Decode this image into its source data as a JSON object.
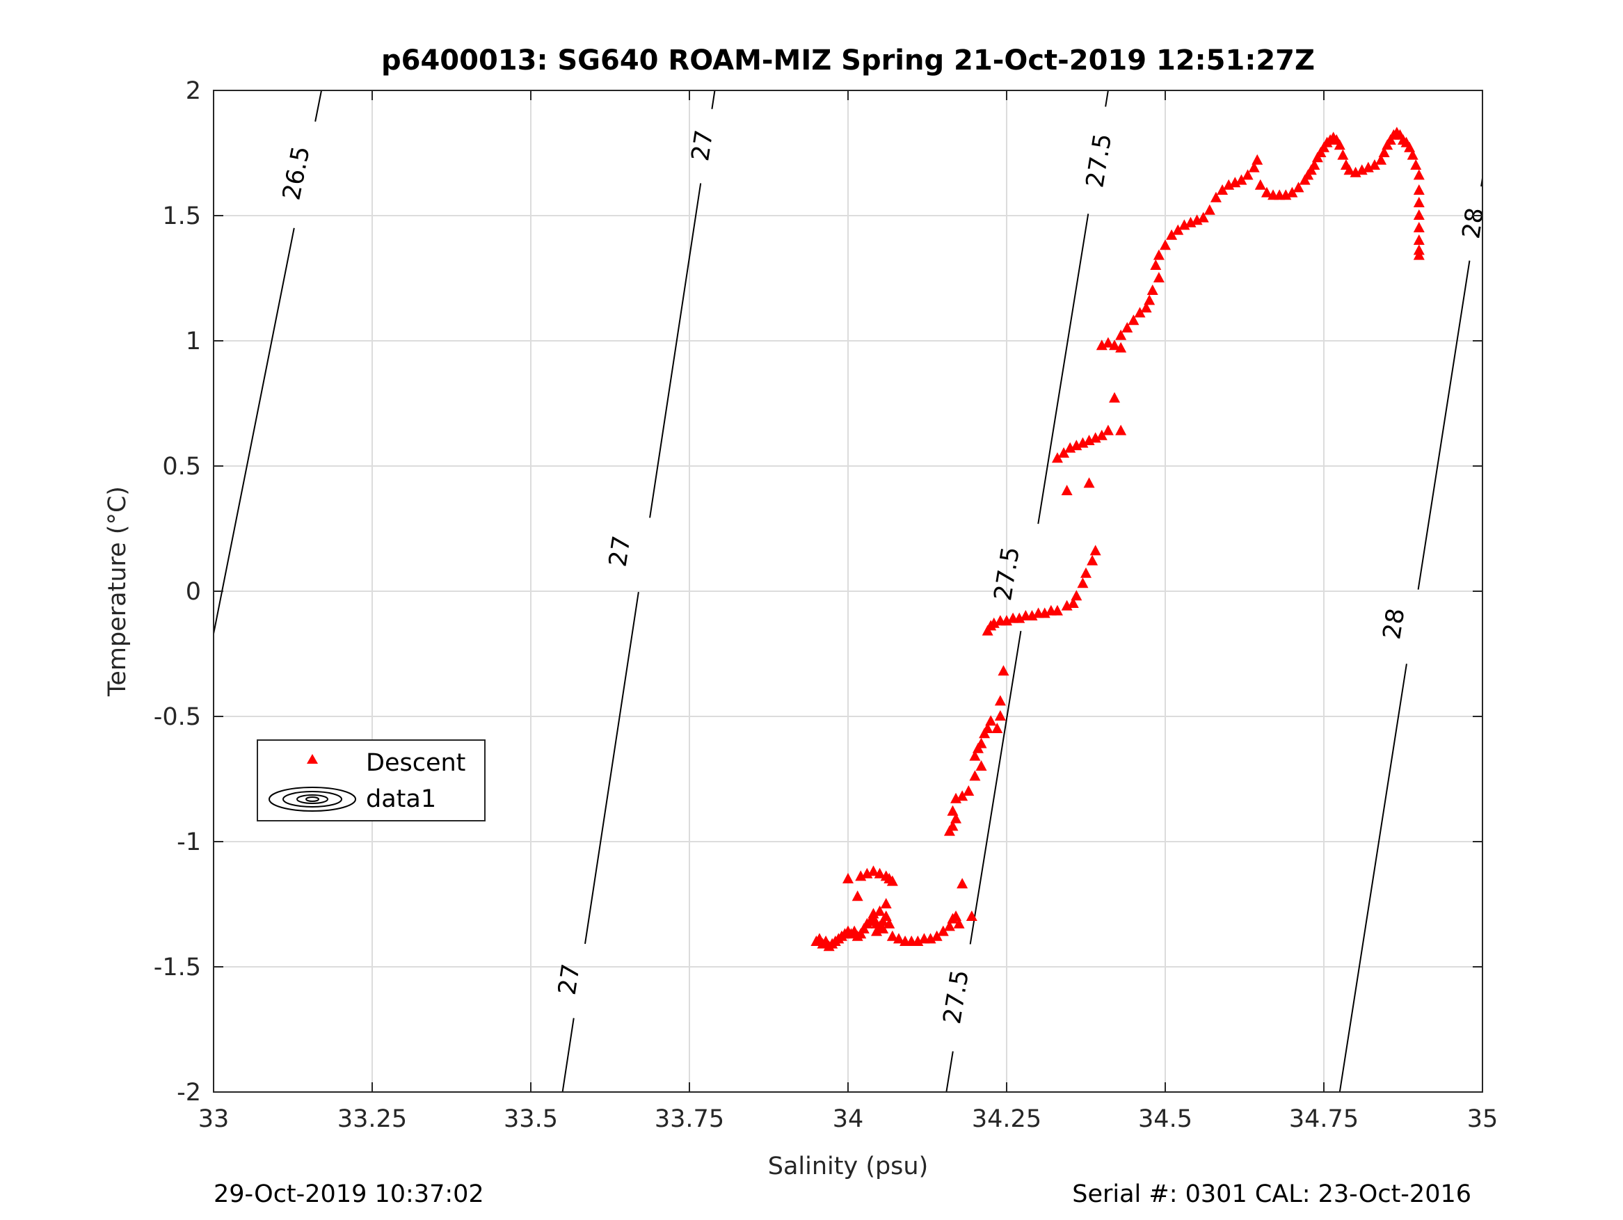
{
  "figure": {
    "title": "p6400013: SG640 ROAM-MIZ Spring 21-Oct-2019 12:51:27Z",
    "footer_left": "29-Oct-2019 10:37:02",
    "footer_right": "Serial #: 0301  CAL: 23-Oct-2016"
  },
  "chart_data": {
    "type": "scatter",
    "title": "p6400013: SG640 ROAM-MIZ Spring 21-Oct-2019 12:51:27Z",
    "xlabel": "Salinity (psu)",
    "ylabel": "Temperature (°C)",
    "xlim": [
      33,
      35
    ],
    "ylim": [
      -2,
      2
    ],
    "xticks": [
      33,
      33.25,
      33.5,
      33.75,
      34,
      34.25,
      34.5,
      34.75,
      35
    ],
    "xtick_labels": [
      "33",
      "33.25",
      "33.5",
      "33.75",
      "34",
      "34.25",
      "34.5",
      "34.75",
      "35"
    ],
    "yticks": [
      -2,
      -1.5,
      -1,
      -0.5,
      0,
      0.5,
      1,
      1.5,
      2
    ],
    "ytick_labels": [
      "-2",
      "-1.5",
      "-1",
      "-0.5",
      "0",
      "0.5",
      "1",
      "1.5",
      "2"
    ],
    "grid": true,
    "legend": {
      "position": "middle-left",
      "entries": [
        "Descent",
        "data1"
      ]
    },
    "colors": {
      "descent": "#ff0000",
      "contour": "#000000",
      "grid": "#dcdcdc"
    },
    "density_contours": [
      {
        "level": "26.5",
        "points": [
          [
            33.0,
            -0.17
          ],
          [
            33.17,
            2.0
          ]
        ],
        "labels": [
          [
            33.13,
            1.67
          ]
        ]
      },
      {
        "level": "27",
        "points": [
          [
            33.55,
            -2.0
          ],
          [
            33.79,
            2.0
          ]
        ],
        "labels": [
          [
            33.56,
            -1.55
          ],
          [
            33.64,
            0.16
          ],
          [
            33.77,
            1.78
          ]
        ]
      },
      {
        "level": "27.5",
        "points": [
          [
            34.155,
            -2.0
          ],
          [
            34.41,
            2.0
          ]
        ],
        "labels": [
          [
            34.17,
            -1.62
          ],
          [
            34.25,
            0.07
          ],
          [
            34.395,
            1.72
          ]
        ]
      },
      {
        "level": "28",
        "points": [
          [
            34.775,
            -2.0
          ],
          [
            35.0,
            1.65
          ]
        ],
        "labels": [
          [
            34.86,
            -0.13
          ],
          [
            34.985,
            1.47
          ]
        ]
      }
    ],
    "series": [
      {
        "name": "Descent",
        "marker": "triangle",
        "color": "#ff0000",
        "points": [
          [
            33.95,
            -1.4
          ],
          [
            33.955,
            -1.39
          ],
          [
            33.96,
            -1.41
          ],
          [
            33.965,
            -1.4
          ],
          [
            33.97,
            -1.42
          ],
          [
            33.975,
            -1.41
          ],
          [
            33.98,
            -1.4
          ],
          [
            33.985,
            -1.39
          ],
          [
            33.99,
            -1.38
          ],
          [
            33.995,
            -1.37
          ],
          [
            34.0,
            -1.36
          ],
          [
            34.005,
            -1.37
          ],
          [
            34.01,
            -1.36
          ],
          [
            34.015,
            -1.38
          ],
          [
            34.02,
            -1.37
          ],
          [
            34.025,
            -1.35
          ],
          [
            34.03,
            -1.33
          ],
          [
            34.035,
            -1.32
          ],
          [
            34.04,
            -1.31
          ],
          [
            34.045,
            -1.33
          ],
          [
            34.05,
            -1.34
          ],
          [
            34.055,
            -1.32
          ],
          [
            34.06,
            -1.3
          ],
          [
            34.065,
            -1.33
          ],
          [
            34.055,
            -1.35
          ],
          [
            34.045,
            -1.36
          ],
          [
            34.04,
            -1.29
          ],
          [
            34.05,
            -1.28
          ],
          [
            34.06,
            -1.25
          ],
          [
            34.015,
            -1.22
          ],
          [
            34.0,
            -1.15
          ],
          [
            34.02,
            -1.14
          ],
          [
            34.03,
            -1.13
          ],
          [
            34.04,
            -1.12
          ],
          [
            34.05,
            -1.13
          ],
          [
            34.06,
            -1.14
          ],
          [
            34.065,
            -1.15
          ],
          [
            34.07,
            -1.16
          ],
          [
            34.07,
            -1.38
          ],
          [
            34.08,
            -1.39
          ],
          [
            34.09,
            -1.4
          ],
          [
            34.1,
            -1.4
          ],
          [
            34.11,
            -1.4
          ],
          [
            34.12,
            -1.39
          ],
          [
            34.13,
            -1.39
          ],
          [
            34.14,
            -1.38
          ],
          [
            34.15,
            -1.36
          ],
          [
            34.16,
            -1.34
          ],
          [
            34.165,
            -1.31
          ],
          [
            34.17,
            -1.3
          ],
          [
            34.175,
            -1.33
          ],
          [
            34.18,
            -1.17
          ],
          [
            34.195,
            -1.3
          ],
          [
            34.16,
            -0.96
          ],
          [
            34.165,
            -0.94
          ],
          [
            34.17,
            -0.91
          ],
          [
            34.165,
            -0.88
          ],
          [
            34.17,
            -0.83
          ],
          [
            34.18,
            -0.82
          ],
          [
            34.19,
            -0.8
          ],
          [
            34.2,
            -0.74
          ],
          [
            34.21,
            -0.7
          ],
          [
            34.2,
            -0.66
          ],
          [
            34.205,
            -0.63
          ],
          [
            34.21,
            -0.61
          ],
          [
            34.215,
            -0.57
          ],
          [
            34.22,
            -0.55
          ],
          [
            34.225,
            -0.52
          ],
          [
            34.235,
            -0.55
          ],
          [
            34.24,
            -0.5
          ],
          [
            34.24,
            -0.44
          ],
          [
            34.245,
            -0.32
          ],
          [
            34.22,
            -0.16
          ],
          [
            34.225,
            -0.14
          ],
          [
            34.23,
            -0.13
          ],
          [
            34.24,
            -0.12
          ],
          [
            34.25,
            -0.12
          ],
          [
            34.26,
            -0.11
          ],
          [
            34.27,
            -0.11
          ],
          [
            34.28,
            -0.1
          ],
          [
            34.29,
            -0.1
          ],
          [
            34.3,
            -0.09
          ],
          [
            34.31,
            -0.09
          ],
          [
            34.32,
            -0.08
          ],
          [
            34.33,
            -0.08
          ],
          [
            34.345,
            -0.06
          ],
          [
            34.355,
            -0.05
          ],
          [
            34.36,
            -0.02
          ],
          [
            34.37,
            0.03
          ],
          [
            34.375,
            0.07
          ],
          [
            34.385,
            0.12
          ],
          [
            34.39,
            0.16
          ],
          [
            34.345,
            0.4
          ],
          [
            34.33,
            0.53
          ],
          [
            34.34,
            0.55
          ],
          [
            34.35,
            0.57
          ],
          [
            34.36,
            0.58
          ],
          [
            34.37,
            0.59
          ],
          [
            34.38,
            0.6
          ],
          [
            34.39,
            0.61
          ],
          [
            34.4,
            0.62
          ],
          [
            34.41,
            0.64
          ],
          [
            34.43,
            0.64
          ],
          [
            34.42,
            0.77
          ],
          [
            34.38,
            0.43
          ],
          [
            34.4,
            0.98
          ],
          [
            34.41,
            0.99
          ],
          [
            34.42,
            0.98
          ],
          [
            34.43,
            0.97
          ],
          [
            34.43,
            1.02
          ],
          [
            34.44,
            1.05
          ],
          [
            34.45,
            1.08
          ],
          [
            34.46,
            1.11
          ],
          [
            34.47,
            1.13
          ],
          [
            34.475,
            1.16
          ],
          [
            34.48,
            1.2
          ],
          [
            34.49,
            1.25
          ],
          [
            34.485,
            1.3
          ],
          [
            34.49,
            1.34
          ],
          [
            34.5,
            1.38
          ],
          [
            34.51,
            1.42
          ],
          [
            34.52,
            1.44
          ],
          [
            34.53,
            1.46
          ],
          [
            34.54,
            1.47
          ],
          [
            34.55,
            1.48
          ],
          [
            34.56,
            1.49
          ],
          [
            34.57,
            1.52
          ],
          [
            34.58,
            1.57
          ],
          [
            34.59,
            1.6
          ],
          [
            34.6,
            1.62
          ],
          [
            34.61,
            1.63
          ],
          [
            34.62,
            1.64
          ],
          [
            34.63,
            1.66
          ],
          [
            34.64,
            1.69
          ],
          [
            34.645,
            1.72
          ],
          [
            34.65,
            1.62
          ],
          [
            34.66,
            1.59
          ],
          [
            34.67,
            1.58
          ],
          [
            34.68,
            1.58
          ],
          [
            34.69,
            1.58
          ],
          [
            34.7,
            1.59
          ],
          [
            34.71,
            1.61
          ],
          [
            34.72,
            1.64
          ],
          [
            34.725,
            1.66
          ],
          [
            34.73,
            1.68
          ],
          [
            34.735,
            1.7
          ],
          [
            34.74,
            1.73
          ],
          [
            34.745,
            1.75
          ],
          [
            34.75,
            1.77
          ],
          [
            34.755,
            1.79
          ],
          [
            34.76,
            1.8
          ],
          [
            34.765,
            1.81
          ],
          [
            34.77,
            1.8
          ],
          [
            34.775,
            1.78
          ],
          [
            34.78,
            1.74
          ],
          [
            34.785,
            1.7
          ],
          [
            34.79,
            1.68
          ],
          [
            34.8,
            1.67
          ],
          [
            34.81,
            1.68
          ],
          [
            34.82,
            1.69
          ],
          [
            34.83,
            1.7
          ],
          [
            34.84,
            1.72
          ],
          [
            34.845,
            1.75
          ],
          [
            34.85,
            1.78
          ],
          [
            34.855,
            1.8
          ],
          [
            34.86,
            1.82
          ],
          [
            34.865,
            1.83
          ],
          [
            34.87,
            1.82
          ],
          [
            34.875,
            1.8
          ],
          [
            34.88,
            1.79
          ],
          [
            34.885,
            1.77
          ],
          [
            34.89,
            1.74
          ],
          [
            34.895,
            1.7
          ],
          [
            34.9,
            1.66
          ],
          [
            34.9,
            1.6
          ],
          [
            34.9,
            1.55
          ],
          [
            34.9,
            1.5
          ],
          [
            34.9,
            1.45
          ],
          [
            34.9,
            1.4
          ],
          [
            34.9,
            1.36
          ],
          [
            34.9,
            1.34
          ]
        ]
      }
    ]
  }
}
